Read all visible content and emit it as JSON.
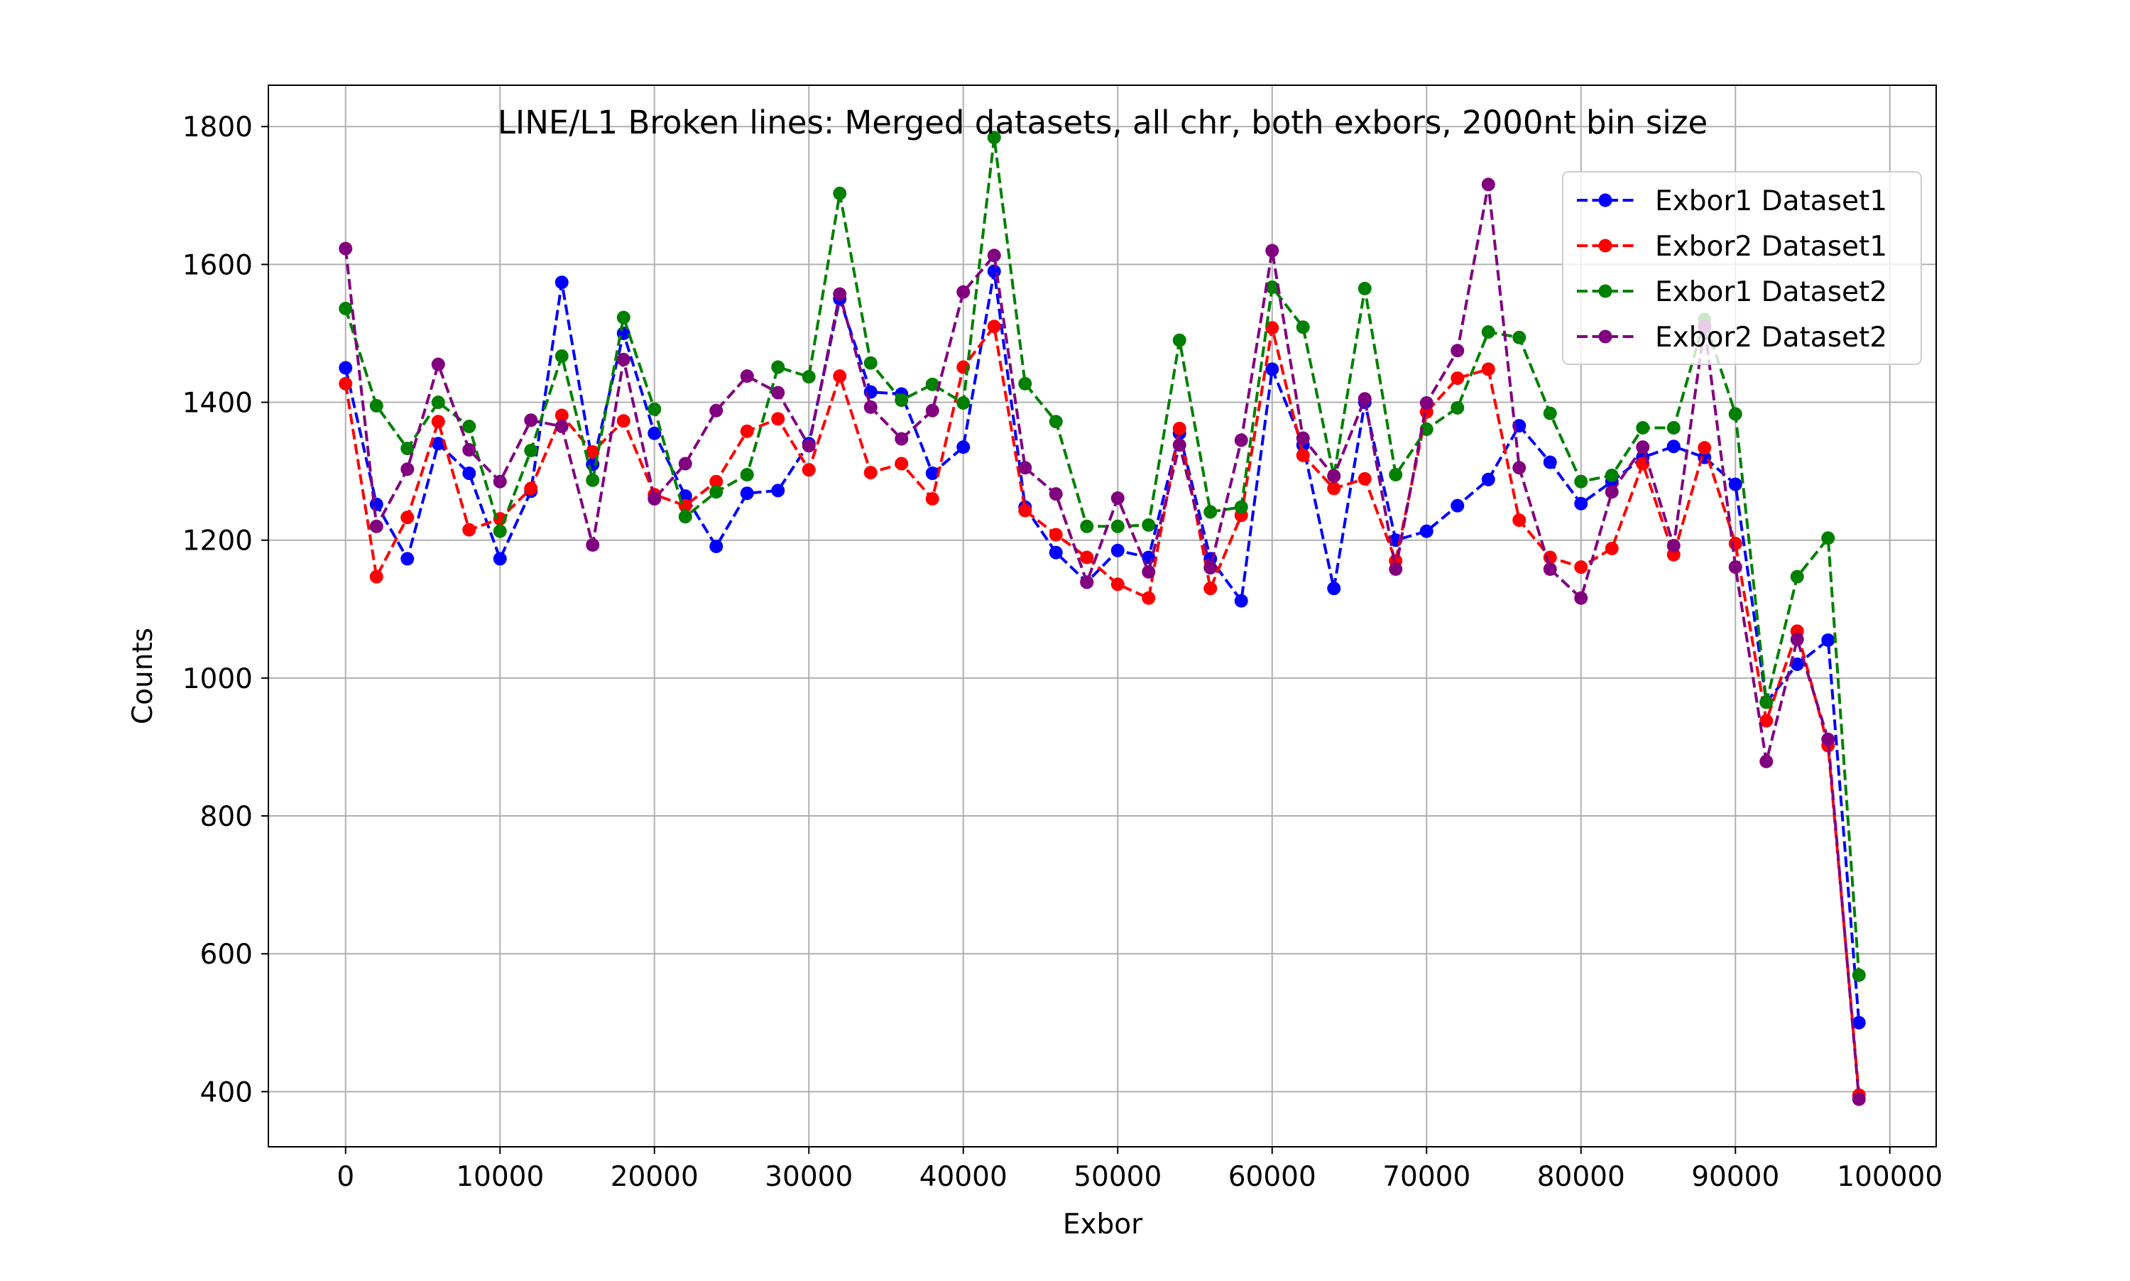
{
  "chart_data": {
    "type": "line",
    "title": "LINE/L1 Broken lines: Merged datasets, all chr, both exbors, 2000nt bin size",
    "xlabel": "Exbor",
    "ylabel": "Counts",
    "xlim": [
      -5000,
      103000
    ],
    "ylim": [
      320,
      1860
    ],
    "xticks": [
      0,
      10000,
      20000,
      30000,
      40000,
      50000,
      60000,
      70000,
      80000,
      90000,
      100000
    ],
    "yticks": [
      400,
      600,
      800,
      1000,
      1200,
      1400,
      1600,
      1800
    ],
    "grid": true,
    "legend_position": "top-right",
    "x": [
      0,
      2000,
      4000,
      6000,
      8000,
      10000,
      12000,
      14000,
      16000,
      18000,
      20000,
      22000,
      24000,
      26000,
      28000,
      30000,
      32000,
      34000,
      36000,
      38000,
      40000,
      42000,
      44000,
      46000,
      48000,
      50000,
      52000,
      54000,
      56000,
      58000,
      60000,
      62000,
      64000,
      66000,
      68000,
      70000,
      72000,
      74000,
      76000,
      78000,
      80000,
      82000,
      84000,
      86000,
      88000,
      90000,
      92000,
      94000,
      96000,
      98000
    ],
    "series": [
      {
        "name": "Exbor1 Dataset1",
        "color": "#0000ff",
        "values": [
          1450,
          1252,
          1173,
          1340,
          1297,
          1173,
          1271,
          1574,
          1310,
          1500,
          1355,
          1264,
          1191,
          1268,
          1272,
          1340,
          1550,
          1415,
          1412,
          1297,
          1335,
          1590,
          1248,
          1182,
          1139,
          1185,
          1175,
          1355,
          1173,
          1112,
          1448,
          1338,
          1130,
          1400,
          1200,
          1213,
          1250,
          1288,
          1366,
          1313,
          1253,
          1285,
          1320,
          1336,
          1320,
          1281,
          965,
          1020,
          1055,
          500
        ]
      },
      {
        "name": "Exbor2 Dataset1",
        "color": "#ff0000",
        "values": [
          1427,
          1147,
          1233,
          1372,
          1215,
          1231,
          1275,
          1381,
          1328,
          1373,
          1266,
          1250,
          1285,
          1358,
          1376,
          1302,
          1438,
          1298,
          1311,
          1260,
          1451,
          1510,
          1243,
          1208,
          1175,
          1136,
          1116,
          1362,
          1130,
          1236,
          1508,
          1323,
          1275,
          1289,
          1170,
          1386,
          1435,
          1448,
          1229,
          1175,
          1161,
          1188,
          1311,
          1179,
          1334,
          1195,
          938,
          1068,
          902,
          395
        ]
      },
      {
        "name": "Exbor1 Dataset2",
        "color": "#008000",
        "values": [
          1536,
          1395,
          1333,
          1400,
          1365,
          1213,
          1330,
          1467,
          1287,
          1523,
          1390,
          1234,
          1270,
          1295,
          1451,
          1437,
          1703,
          1457,
          1403,
          1426,
          1399,
          1784,
          1427,
          1372,
          1220,
          1220,
          1222,
          1490,
          1241,
          1248,
          1567,
          1509,
          1293,
          1565,
          1295,
          1361,
          1392,
          1502,
          1494,
          1384,
          1285,
          1294,
          1363,
          1363,
          1520,
          1383,
          965,
          1147,
          1203,
          569
        ]
      },
      {
        "name": "Exbor2 Dataset2",
        "color": "#800080",
        "values": [
          1623,
          1220,
          1303,
          1455,
          1331,
          1285,
          1374,
          1365,
          1193,
          1462,
          1260,
          1311,
          1388,
          1438,
          1414,
          1337,
          1557,
          1393,
          1347,
          1388,
          1560,
          1613,
          1305,
          1267,
          1139,
          1261,
          1154,
          1338,
          1160,
          1345,
          1620,
          1348,
          1293,
          1405,
          1158,
          1399,
          1475,
          1716,
          1305,
          1158,
          1116,
          1270,
          1335,
          1192,
          1510,
          1161,
          879,
          1056,
          911,
          389
        ]
      }
    ]
  }
}
